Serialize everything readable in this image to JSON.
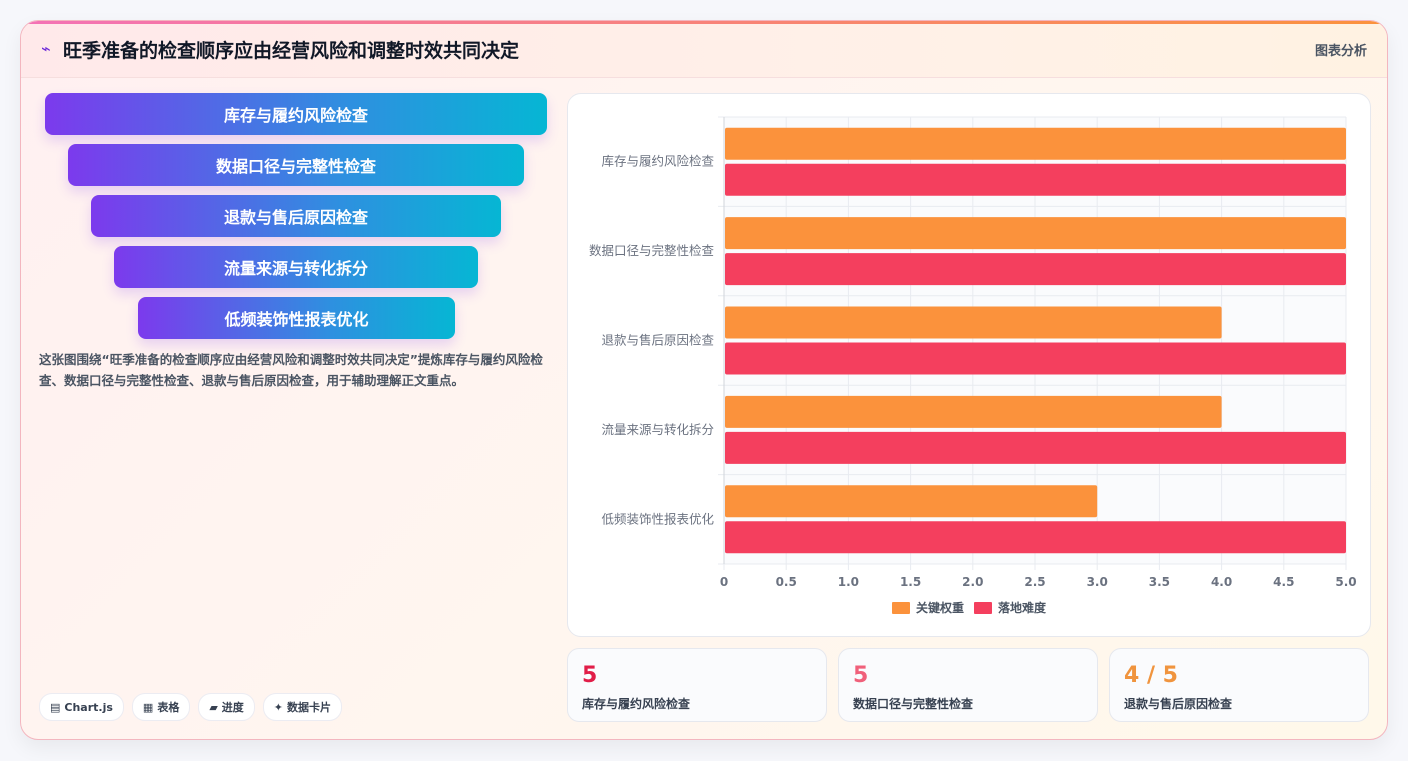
{
  "header": {
    "title": "旺季准备的检查顺序应由经营风险和调整时效共同决定",
    "tag": "图表分析",
    "icon": "spark-icon"
  },
  "funnel": [
    "库存与履约风险检查",
    "数据口径与完整性检查",
    "退款与售后原因检查",
    "流量来源与转化拆分",
    "低频装饰性报表优化"
  ],
  "description": "这张图围绕“旺季准备的检查顺序应由经营风险和调整时效共同决定”提炼库存与履约风险检查、数据口径与完整性检查、退款与售后原因检查，用于辅助理解正文重点。",
  "chips": [
    {
      "icon": "chart-icon",
      "glyph": "▤",
      "label": "Chart.js"
    },
    {
      "icon": "table-icon",
      "glyph": "▦",
      "label": "表格"
    },
    {
      "icon": "progress-icon",
      "glyph": "▰",
      "label": "进度"
    },
    {
      "icon": "sparkle-icon",
      "glyph": "✦",
      "label": "数据卡片"
    }
  ],
  "stats": [
    {
      "value": "5",
      "label": "库存与履约风险检查",
      "color": "#e11d48"
    },
    {
      "value": "5",
      "label": "数据口径与完整性检查",
      "color": "#f0607a"
    },
    {
      "value": "4 / 5",
      "label": "退款与售后原因检查",
      "color": "#f0943e"
    }
  ],
  "chart_data": {
    "type": "bar",
    "orientation": "horizontal",
    "categories": [
      "库存与履约风险检查",
      "数据口径与完整性检查",
      "退款与售后原因检查",
      "流量来源与转化拆分",
      "低频装饰性报表优化"
    ],
    "series": [
      {
        "name": "关键权重",
        "values": [
          5,
          5,
          4,
          4,
          3
        ],
        "color": "#fb923c"
      },
      {
        "name": "落地难度",
        "values": [
          5,
          5,
          5,
          5,
          5
        ],
        "color": "#f43f5e"
      }
    ],
    "xlim": [
      0,
      5
    ],
    "ticks": [
      "0",
      "0.5",
      "1.0",
      "1.5",
      "2.0",
      "2.5",
      "3.0",
      "3.5",
      "4.0",
      "4.5",
      "5.0"
    ],
    "grid": true,
    "legend": "bottom"
  }
}
